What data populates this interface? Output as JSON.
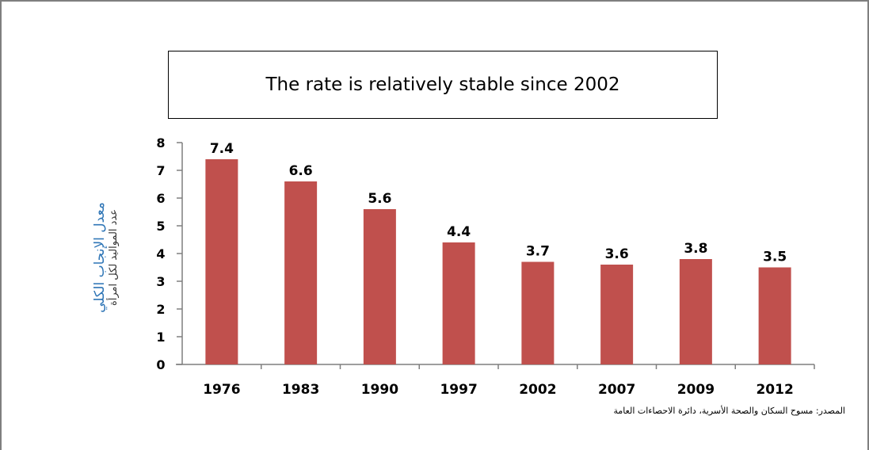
{
  "chart_data": {
    "type": "bar",
    "title": "The rate is relatively stable since 2002",
    "ylabel": "معدل الإنجاب الكلي",
    "ylabel_sub": "عدد المواليد لكل امرأة",
    "categories": [
      "1976",
      "1983",
      "1990",
      "1997",
      "2002",
      "2007",
      "2009",
      "2012"
    ],
    "values": [
      7.4,
      6.6,
      5.6,
      4.4,
      3.7,
      3.6,
      3.8,
      3.5
    ],
    "data_labels": [
      "7.4",
      "6.6",
      "5.6",
      "4.4",
      "3.7",
      "3.6",
      "3.8",
      "3.5"
    ],
    "yticks": [
      0,
      1,
      2,
      3,
      4,
      5,
      6,
      7,
      8
    ],
    "ylim": [
      0,
      8
    ],
    "grid": false,
    "bar_color": "#c0504d",
    "source": "المصدر: مسوح السكان والصحة الأسرية، دائرة الاحصاءات العامة"
  }
}
